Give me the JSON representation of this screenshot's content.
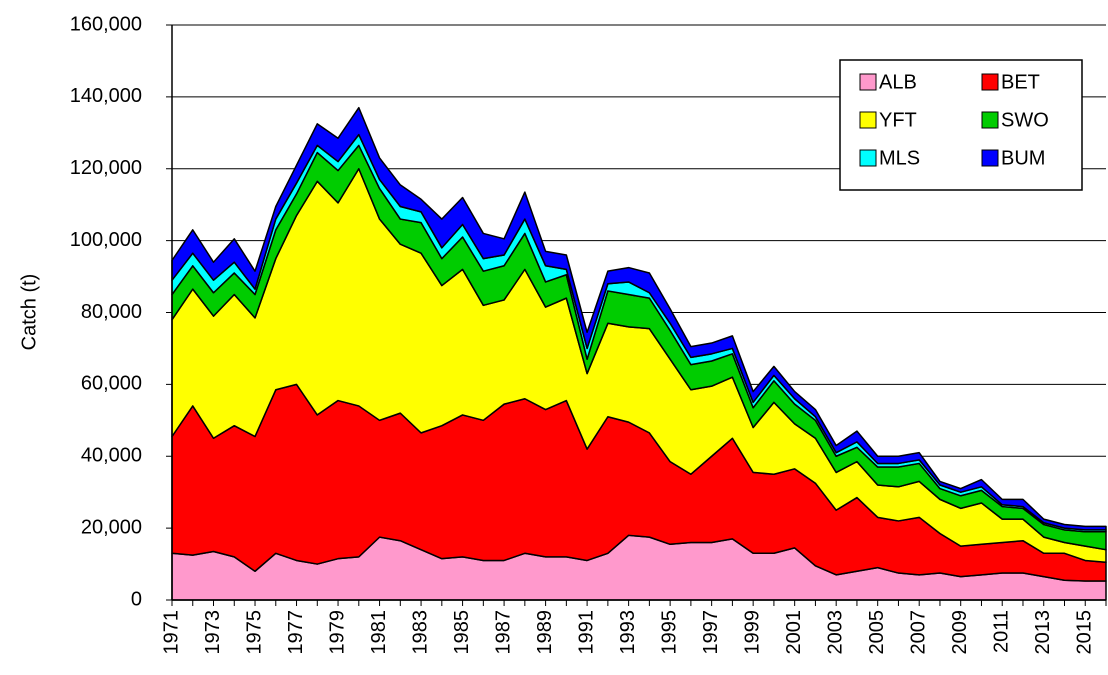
{
  "chart_data": {
    "type": "stacked_area",
    "y_label": "Catch (t)",
    "categories": [
      "1971",
      null,
      "1973",
      null,
      "1975",
      null,
      "1977",
      null,
      "1979",
      null,
      "1981",
      null,
      "1983",
      null,
      "1985",
      null,
      "1987",
      null,
      "1989",
      null,
      "1991",
      null,
      "1993",
      null,
      "1995",
      null,
      "1997",
      null,
      "1999",
      null,
      "2001",
      null,
      "2003",
      null,
      "2005",
      null,
      "2007",
      null,
      "2009",
      null,
      "2011",
      null,
      "2013",
      null,
      "2015",
      null
    ],
    "series": [
      {
        "name": "ALB",
        "color": "#ff99cc",
        "values": [
          13000,
          12500,
          13500,
          12000,
          8000,
          13000,
          11000,
          10000,
          11500,
          12000,
          17500,
          16500,
          14000,
          11500,
          12000,
          11000,
          11000,
          13000,
          12000,
          12000,
          11000,
          13000,
          18000,
          17500,
          15500,
          16000,
          16000,
          17000,
          13000,
          13000,
          14500,
          9500,
          7000,
          8000,
          9000,
          7500,
          7000,
          7500,
          6500,
          7000,
          7500,
          7500,
          6500,
          5500,
          5300,
          5300
        ]
      },
      {
        "name": "BET",
        "color": "#ff0000",
        "values": [
          32500,
          41500,
          31500,
          36500,
          37500,
          45500,
          49000,
          41500,
          44000,
          42000,
          32500,
          35500,
          32500,
          37000,
          39500,
          39000,
          43500,
          43000,
          41000,
          43500,
          31000,
          38000,
          31500,
          29000,
          23000,
          19000,
          24000,
          28000,
          22500,
          22000,
          22000,
          23000,
          18000,
          20500,
          14000,
          14500,
          16000,
          11000,
          8500,
          8500,
          8500,
          9000,
          6500,
          7500,
          5700,
          5200
        ]
      },
      {
        "name": "YFT",
        "color": "#ffff00",
        "values": [
          32500,
          32500,
          34000,
          36500,
          33000,
          36500,
          47000,
          65000,
          55000,
          66000,
          56000,
          47000,
          50000,
          39000,
          40500,
          32000,
          29000,
          36000,
          28500,
          28500,
          21000,
          26000,
          26500,
          29000,
          28500,
          23500,
          19500,
          17000,
          12500,
          20000,
          12500,
          12500,
          10500,
          10000,
          9000,
          9500,
          10000,
          9500,
          10500,
          11500,
          6500,
          6000,
          4500,
          3000,
          4000,
          3500
        ]
      },
      {
        "name": "SWO",
        "color": "#00cc00",
        "values": [
          7000,
          6500,
          6500,
          6000,
          6500,
          8000,
          6000,
          8000,
          9000,
          6500,
          8500,
          7000,
          8500,
          7500,
          9000,
          9500,
          9500,
          10000,
          7000,
          6500,
          4000,
          9000,
          9000,
          8500,
          8000,
          7000,
          7000,
          6500,
          5500,
          6000,
          5500,
          5000,
          4500,
          4000,
          5000,
          5500,
          5000,
          3000,
          3500,
          3500,
          3500,
          3000,
          3500,
          3500,
          4000,
          5000
        ]
      },
      {
        "name": "MLS",
        "color": "#00ffff",
        "values": [
          4000,
          3500,
          3500,
          3000,
          1500,
          3000,
          3000,
          2000,
          2500,
          3000,
          2500,
          3500,
          3000,
          3000,
          3500,
          3500,
          3000,
          4000,
          4500,
          1500,
          3000,
          2000,
          3500,
          1500,
          2000,
          2000,
          2000,
          1500,
          1500,
          1500,
          1500,
          1000,
          1000,
          1500,
          1000,
          1000,
          1000,
          1000,
          1000,
          1000,
          500,
          500,
          500,
          500,
          500,
          500
        ]
      },
      {
        "name": "BUM",
        "color": "#0000ff",
        "values": [
          5500,
          6500,
          5000,
          6500,
          5000,
          3500,
          5000,
          6000,
          6500,
          7500,
          6000,
          6000,
          3500,
          8000,
          7500,
          7000,
          4500,
          7500,
          4000,
          4000,
          4500,
          3500,
          4000,
          5500,
          4000,
          3000,
          3000,
          3500,
          3000,
          2500,
          2000,
          2000,
          2000,
          3000,
          2000,
          2000,
          2000,
          1000,
          1000,
          2000,
          1500,
          2000,
          1000,
          1000,
          1000,
          1000
        ]
      }
    ],
    "ylim": [
      0,
      160000
    ],
    "yticks": [
      0,
      {
        "value": 20000,
        "label": "20,000"
      },
      {
        "value": 40000,
        "label": "40,000"
      },
      {
        "value": 60000,
        "label": "60,000"
      },
      {
        "value": 80000,
        "label": "80,000"
      },
      {
        "value": 100000,
        "label": "100,000"
      },
      {
        "value": 120000,
        "label": "120,000"
      },
      {
        "value": 140000,
        "label": "140,000"
      },
      {
        "value": 160000,
        "label": "160,000"
      }
    ],
    "grid": true,
    "legend": "upper right"
  }
}
